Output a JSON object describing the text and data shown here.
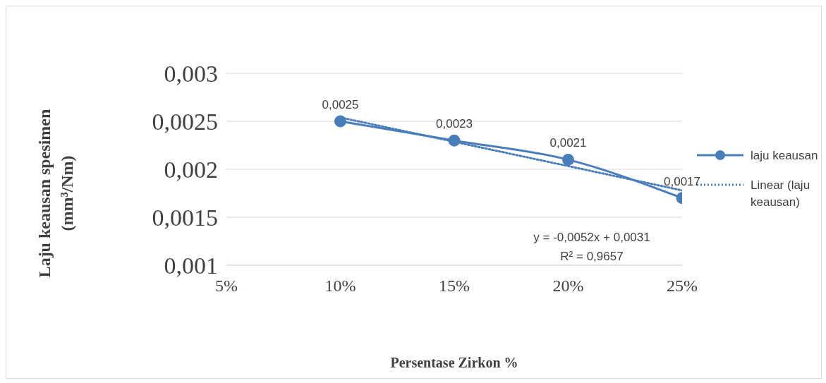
{
  "chart_data": {
    "type": "line",
    "xlabel": "Persentase Zirkon %",
    "ylabel": "Laju keausan spesimen (mm³/Nm)",
    "x": [
      0.1,
      0.15,
      0.2,
      0.25
    ],
    "series": [
      {
        "name": "laju keausan",
        "color": "#4a7ebb",
        "values": [
          0.0025,
          0.0023,
          0.0021,
          0.0017
        ],
        "value_labels": [
          "0,0025",
          "0,0023",
          "0,0021",
          "0,0017"
        ],
        "marker": "circle",
        "line_style": "solid"
      },
      {
        "name": "Linear (laju keausan)",
        "type": "line",
        "color": "#4a7ebb",
        "x": [
          0.1,
          0.25
        ],
        "values": [
          0.00254,
          0.00178
        ],
        "marker": "none",
        "line_style": "dotted"
      }
    ],
    "xlim": [
      0.05,
      0.25
    ],
    "xticks": [
      {
        "value": 0.05,
        "label": "5%"
      },
      {
        "value": 0.1,
        "label": "10%"
      },
      {
        "value": 0.15,
        "label": "15%"
      },
      {
        "value": 0.2,
        "label": "20%"
      },
      {
        "value": 0.25,
        "label": "25%"
      }
    ],
    "ylim": [
      0.001,
      0.003
    ],
    "yticks": [
      {
        "value": 0.001,
        "label": "0,001"
      },
      {
        "value": 0.0015,
        "label": "0,0015"
      },
      {
        "value": 0.002,
        "label": "0,002"
      },
      {
        "value": 0.0025,
        "label": "0,0025"
      },
      {
        "value": 0.003,
        "label": "0,003"
      }
    ],
    "grid": "y",
    "legend": "right",
    "annotations": [
      "y = -0,0052x + 0,0031",
      "R² = 0,9657"
    ]
  }
}
